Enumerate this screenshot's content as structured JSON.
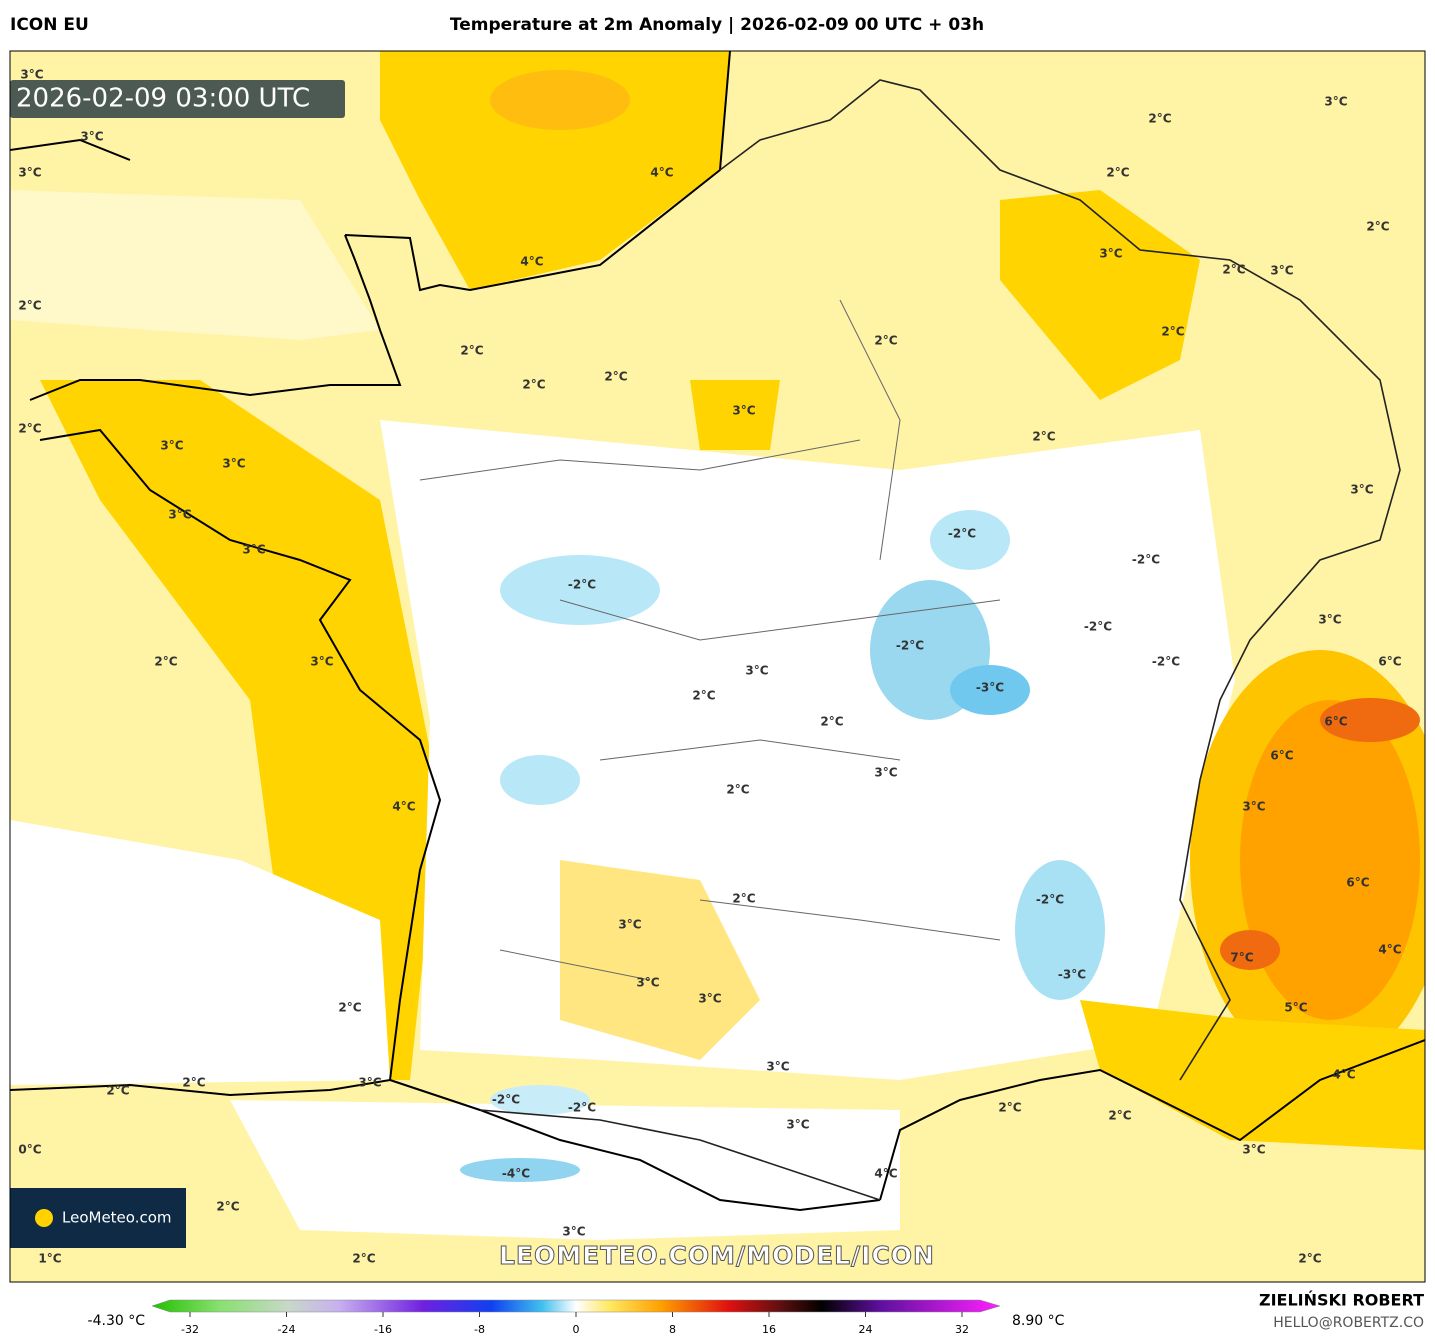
{
  "header": {
    "model": "ICON EU",
    "title": "Temperature at 2m Anomaly | 2026-02-09 00 UTC + 03h"
  },
  "map": {
    "timestamp": "2026-02-09 03:00 UTC",
    "watermark": "LEOMETEO.COM/MODEL/ICON",
    "logo": "LeoMeteo.com",
    "labels": [
      "3°C",
      "3°C",
      "3°C",
      "4°C",
      "4°C",
      "2°C",
      "2°C",
      "2°C",
      "2°C",
      "2°C",
      "3°C",
      "2°C",
      "2°C",
      "3°C",
      "2°C",
      "2°C",
      "3°C",
      "2°C",
      "3°C",
      "2°C",
      "2°C",
      "3°C",
      "3°C",
      "3°C",
      "3°C",
      "3°C",
      "-2°C",
      "-2°C",
      "-2°C",
      "-2°C",
      "-2°C",
      "-2°C",
      "-3°C",
      "3°C",
      "6°C",
      "6°C",
      "2°C",
      "3°C",
      "3°C",
      "2°C",
      "2°C",
      "6°C",
      "3°C",
      "3°C",
      "2°C",
      "4°C",
      "6°C",
      "2°C",
      "3°C",
      "-2°C",
      "4°C",
      "7°C",
      "-3°C",
      "3°C",
      "3°C",
      "2°C",
      "5°C",
      "3°C",
      "4°C",
      "3°C",
      "2°C",
      "2°C",
      "-2°C",
      "-2°C",
      "2°C",
      "2°C",
      "3°C",
      "3°C",
      "0°C",
      "-4°C",
      "4°C",
      "2°C",
      "3°C",
      "1°C",
      "2°C",
      "2°C"
    ]
  },
  "colorbar": {
    "min_label": "-4.30 °C",
    "max_label": "8.90 °C",
    "ticks": [
      -32,
      -24,
      -16,
      -8,
      0,
      8,
      16,
      24,
      32
    ]
  },
  "footer": {
    "author": "ZIELIŃSKI ROBERT",
    "email": "HELLO@ROBERTZ.CO"
  }
}
